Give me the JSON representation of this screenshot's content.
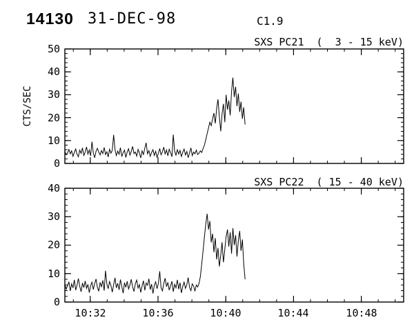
{
  "header": {
    "event_number": "14130",
    "date": "31-DEC-98",
    "goes_class": "C1.9"
  },
  "chart_data": [
    {
      "type": "line",
      "title": "SXS PC21  (  3 - 15 keV)",
      "ylabel": "CTS/SEC",
      "ylim": [
        0,
        50
      ],
      "yticks": [
        0,
        10,
        20,
        30,
        40,
        50
      ],
      "y_minor_step": 2,
      "x_minutes_after_1030": [
        0.5,
        20.5
      ],
      "x_minor_step": 1,
      "x_major_ticks": [
        {
          "t": 2,
          "label": "10:32"
        },
        {
          "t": 6,
          "label": "10:36"
        },
        {
          "t": 10,
          "label": "10:40"
        },
        {
          "t": 14,
          "label": "10:44"
        },
        {
          "t": 18,
          "label": "10:48"
        }
      ],
      "series": [
        {
          "name": "SXS PC21 3-15 keV counts",
          "t0": 0.5,
          "dt": 0.08,
          "values": [
            5.2,
            3.8,
            4.6,
            6.1,
            4.2,
            5.5,
            3.1,
            4.8,
            6.3,
            4.0,
            2.9,
            5.8,
            4.4,
            6.8,
            3.5,
            5.0,
            7.2,
            4.1,
            5.9,
            3.3,
            9.5,
            4.6,
            2.5,
            5.3,
            6.6,
            4.9,
            3.7,
            5.6,
            4.3,
            7.0,
            3.9,
            5.1,
            2.8,
            6.2,
            4.5,
            5.7,
            12.5,
            6.0,
            3.4,
            5.4,
            4.0,
            6.9,
            3.0,
            4.7,
            5.8,
            2.6,
            4.9,
            6.4,
            3.6,
            5.2,
            7.4,
            4.3,
            5.0,
            3.2,
            6.1,
            4.6,
            2.4,
            5.5,
            3.9,
            6.7,
            9.0,
            4.2,
            5.6,
            3.1,
            4.8,
            6.0,
            3.5,
            5.3,
            2.7,
            4.4,
            6.5,
            3.8,
            5.1,
            7.1,
            4.0,
            5.9,
            3.3,
            6.2,
            4.7,
            2.9,
            12.6,
            5.4,
            3.6,
            6.0,
            4.1,
            5.7,
            3.0,
            4.9,
            6.3,
            3.7,
            5.2,
            2.5,
            4.6,
            6.8,
            3.4,
            5.0,
            4.2,
            5.8,
            3.9,
            4.5,
            5.5,
            4.8,
            6.5,
            8.0,
            10.5,
            13.0,
            15.5,
            18.0,
            16.5,
            19.5,
            22.0,
            17.5,
            24.0,
            28.0,
            20.5,
            14.0,
            21.5,
            26.0,
            18.0,
            30.0,
            23.5,
            27.5,
            21.0,
            31.5,
            37.5,
            29.0,
            33.5,
            25.0,
            30.5,
            22.5,
            27.0,
            19.5,
            24.5,
            17.0
          ]
        }
      ]
    },
    {
      "type": "line",
      "title": "SXS PC22  ( 15 - 40 keV)",
      "ylabel": "",
      "ylim": [
        0,
        40
      ],
      "yticks": [
        0,
        10,
        20,
        30,
        40
      ],
      "y_minor_step": 2,
      "x_minutes_after_1030": [
        0.5,
        20.5
      ],
      "x_minor_step": 1,
      "x_major_ticks": [
        {
          "t": 2,
          "label": "10:32"
        },
        {
          "t": 6,
          "label": "10:36"
        },
        {
          "t": 10,
          "label": "10:40"
        },
        {
          "t": 14,
          "label": "10:44"
        },
        {
          "t": 18,
          "label": "10:48"
        }
      ],
      "series": [
        {
          "name": "SXS PC22 15-40 keV counts",
          "t0": 0.5,
          "dt": 0.08,
          "values": [
            6.2,
            4.5,
            5.8,
            7.1,
            3.9,
            6.4,
            5.0,
            7.8,
            4.2,
            6.0,
            8.3,
            5.5,
            3.6,
            6.7,
            5.1,
            7.4,
            4.8,
            6.2,
            3.3,
            5.7,
            7.0,
            4.4,
            6.5,
            8.1,
            5.2,
            3.8,
            6.9,
            5.4,
            7.6,
            4.0,
            11.0,
            6.3,
            4.7,
            7.2,
            5.8,
            3.5,
            6.1,
            8.5,
            5.0,
            6.6,
            4.3,
            7.9,
            5.5,
            3.1,
            6.8,
            5.2,
            7.3,
            4.6,
            6.0,
            8.0,
            5.3,
            3.7,
            6.4,
            7.7,
            4.9,
            6.1,
            3.4,
            5.6,
            7.5,
            4.1,
            6.7,
            5.9,
            8.2,
            4.4,
            6.3,
            3.0,
            5.8,
            7.1,
            4.7,
            6.5,
            10.8,
            5.1,
            3.9,
            6.6,
            8.4,
            5.4,
            6.9,
            4.2,
            5.7,
            7.3,
            3.6,
            6.2,
            5.0,
            7.8,
            4.5,
            6.8,
            3.2,
            5.5,
            7.0,
            4.8,
            6.1,
            8.6,
            5.2,
            4.0,
            6.4,
            5.6,
            3.8,
            6.0,
            5.3,
            6.5,
            9.0,
            13.5,
            18.0,
            23.0,
            27.5,
            31.0,
            25.5,
            28.5,
            21.0,
            24.0,
            17.5,
            22.5,
            15.0,
            19.0,
            12.5,
            16.5,
            21.0,
            14.0,
            18.5,
            23.0,
            25.5,
            19.5,
            24.5,
            17.0,
            26.0,
            20.0,
            23.5,
            16.0,
            21.5,
            25.0,
            18.0,
            22.0,
            13.5,
            8.0
          ]
        }
      ]
    }
  ],
  "colors": {
    "stroke": "#000000",
    "background": "#ffffff"
  }
}
